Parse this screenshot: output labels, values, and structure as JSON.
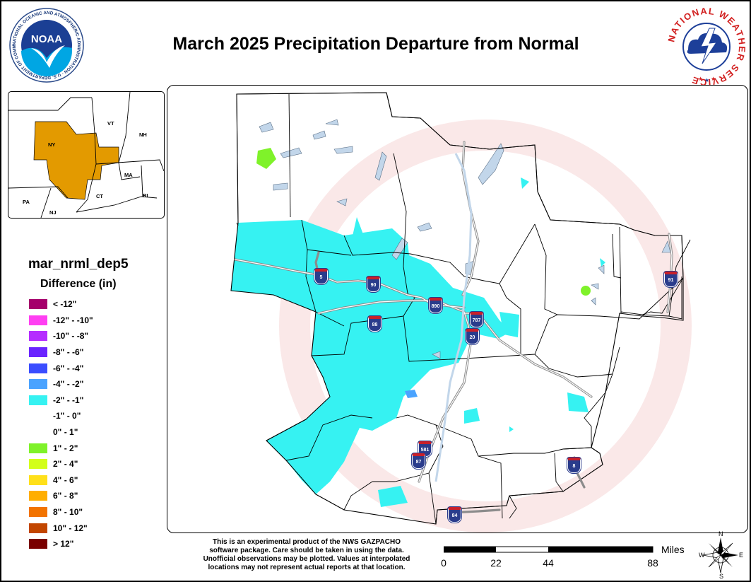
{
  "header": {
    "title": "March 2025 Precipitation Departure from Normal"
  },
  "logos": {
    "noaa_text": "NOAA",
    "noaa_ring_text": "NATIONAL OCEANIC AND ATMOSPHERIC ADMINISTRATION · U.S. DEPARTMENT OF COMMERCE",
    "nws_ring_text": "NATIONAL WEATHER SERVICE"
  },
  "inset": {
    "states": [
      "VT",
      "NH",
      "NY",
      "MA",
      "CT",
      "RI",
      "PA",
      "NJ"
    ],
    "highlight_color": "#e39a00"
  },
  "legend": {
    "title": "mar_nrml_dep5",
    "subtitle": "Difference (in)",
    "items": [
      {
        "label": "< -12\"",
        "color": "#a5006b"
      },
      {
        "label": "-12\" - -10\"",
        "color": "#ff3ff2"
      },
      {
        "label": "-10\" - -8\"",
        "color": "#b52cff"
      },
      {
        "label": "-8\" - -6\"",
        "color": "#6a24ff"
      },
      {
        "label": "-6\" - -4\"",
        "color": "#3a4dff"
      },
      {
        "label": "-4\" - -2\"",
        "color": "#4aa3ff"
      },
      {
        "label": "-2\" - -1\"",
        "color": "#36f2f2"
      },
      {
        "label": "-1\" - 0\"",
        "color": "#ffffff"
      },
      {
        "label": "0\" - 1\"",
        "color": "#ffffff"
      },
      {
        "label": "1\" - 2\"",
        "color": "#7ff22a"
      },
      {
        "label": "2\" - 4\"",
        "color": "#d3ff1a"
      },
      {
        "label": "4\" - 6\"",
        "color": "#ffe01a"
      },
      {
        "label": "6\" - 8\"",
        "color": "#ffae00"
      },
      {
        "label": "8\" - 10\"",
        "color": "#f27300"
      },
      {
        "label": "10\" - 12\"",
        "color": "#c24600"
      },
      {
        "label": "> 12\"",
        "color": "#7a0000"
      }
    ]
  },
  "map": {
    "interstates": [
      "5",
      "90",
      "890",
      "88",
      "787",
      "20",
      "91",
      "581",
      "87",
      "8",
      "84"
    ],
    "water_color": "#c2d6ea",
    "road_color": "#9a9a9a"
  },
  "disclaimer": [
    "This is an experimental product of the NWS GAZPACHO",
    "software package. Care should be taken in using the data.",
    "Unofficial observations may be plotted. Values at interpolated",
    "locations may not represent actual reports at that location."
  ],
  "scale": {
    "unit": "Miles",
    "ticks": [
      "0",
      "22",
      "44",
      "88"
    ]
  },
  "compass": {
    "n": "N",
    "s": "S",
    "e": "E",
    "w": "W"
  }
}
